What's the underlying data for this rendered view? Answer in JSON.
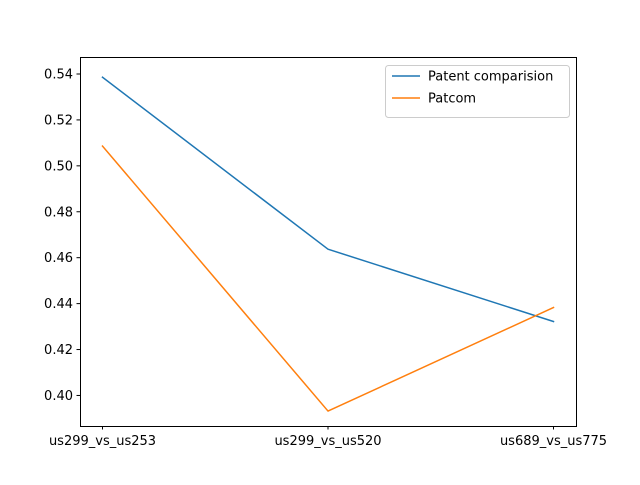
{
  "chart_data": {
    "type": "line",
    "title": "",
    "xlabel": "",
    "ylabel": "",
    "categories": [
      "us299_vs_us253",
      "us299_vs_us520",
      "us689_vs_us775"
    ],
    "ylim": [
      0.3867,
      0.5474
    ],
    "yticks": [
      "0.40",
      "0.42",
      "0.44",
      "0.46",
      "0.48",
      "0.50",
      "0.52",
      "0.54"
    ],
    "grid": false,
    "legend_position": "top-right",
    "series": [
      {
        "name": "Patent comparision",
        "values": [
          0.5386,
          0.4637,
          0.4322
        ],
        "color": "#1f77b4"
      },
      {
        "name": "Patcom",
        "values": [
          0.5086,
          0.3932,
          0.4383
        ],
        "color": "#ff7f0e"
      }
    ]
  }
}
